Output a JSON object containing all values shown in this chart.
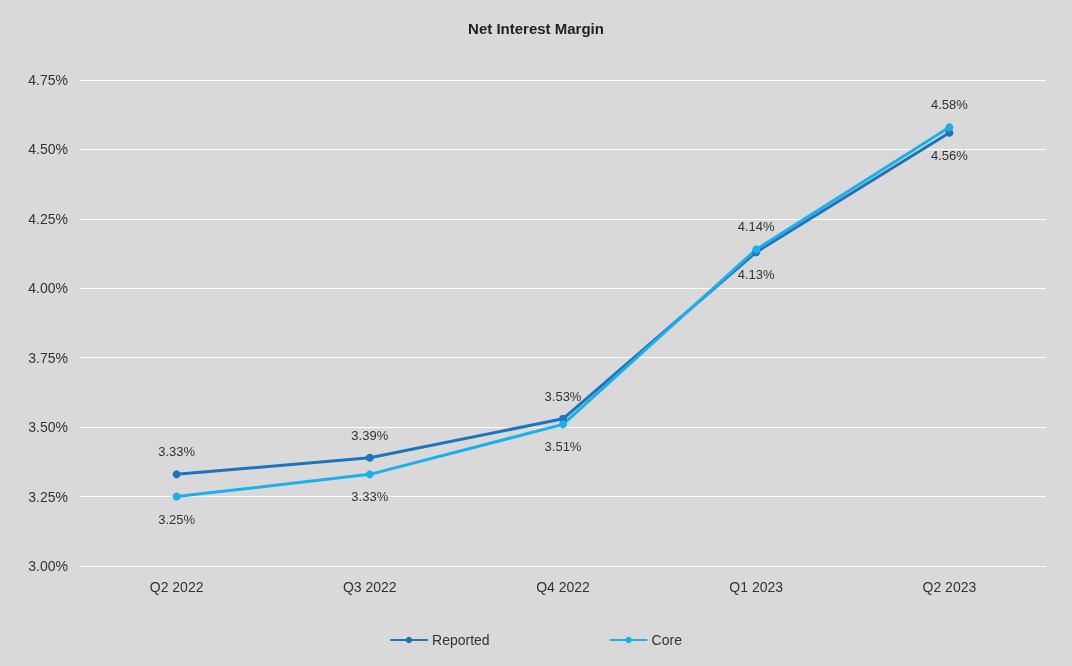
{
  "chart_data": {
    "type": "line",
    "title": "Net Interest Margin",
    "categories": [
      "Q2 2022",
      "Q3 2022",
      "Q4 2022",
      "Q1 2023",
      "Q2 2023"
    ],
    "series": [
      {
        "name": "Reported",
        "color": "#1f73bd",
        "values": [
          3.33,
          3.39,
          3.53,
          4.13,
          4.56
        ],
        "value_labels": [
          "3.33%",
          "3.39%",
          "3.53%",
          "4.13%",
          "4.56%"
        ]
      },
      {
        "name": "Core",
        "color": "#1cb0ea",
        "values": [
          3.25,
          3.33,
          3.51,
          4.14,
          4.58
        ],
        "value_labels": [
          "3.25%",
          "3.33%",
          "3.51%",
          "4.14%",
          "4.58%"
        ]
      }
    ],
    "ylim": [
      3,
      4.75
    ],
    "yticks": [
      {
        "value": 3,
        "label": "3.00%"
      },
      {
        "value": 3.25,
        "label": "3.25%"
      },
      {
        "value": 3.5,
        "label": "3.50%"
      },
      {
        "value": 3.75,
        "label": "3.75%"
      },
      {
        "value": 4,
        "label": "4.00%"
      },
      {
        "value": 4.25,
        "label": "4.25%"
      },
      {
        "value": 4.5,
        "label": "4.50%"
      },
      {
        "value": 4.75,
        "label": "4.75%"
      }
    ],
    "grid": "y",
    "legend": "bottom",
    "marker": "circle",
    "line_style": "solid"
  }
}
